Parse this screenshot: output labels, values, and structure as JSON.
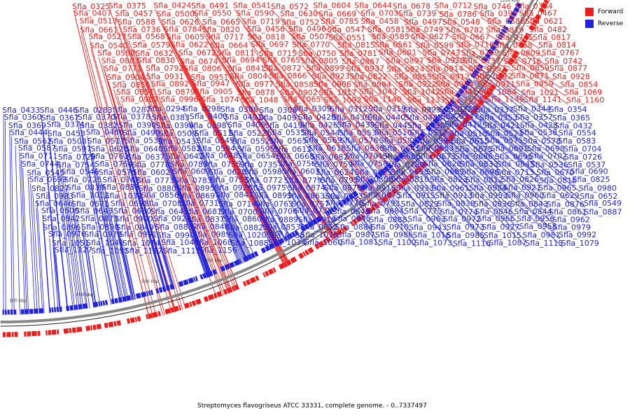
{
  "colors": {
    "forward": "#ef1c1c",
    "reverse": "#2222dd",
    "backbone": "#888888"
  },
  "legend": {
    "forward": "Forward",
    "reverse": "Reverse"
  },
  "caption": "Streptomyces flavogriseus ATCC 33331, complete genome. - 0..7337497",
  "scale_ticks": [
    "100 kbp",
    "400 kbp",
    "500 kbp",
    "600 kbp",
    "700 kbp",
    "800 kbp",
    "900 kbp",
    "1000 kbp",
    "1100 kbp",
    "1200 kbp",
    "1300 kbp"
  ],
  "forward_labels": [
    "Sfla_0325",
    "Sfla_0375",
    "Sfla_0424",
    "Sfla_0491",
    "Sfla_0541",
    "Sfla_0572",
    "Sfla_0604",
    "Sfla_0644",
    "Sfla_0678",
    "Sfla_0712",
    "Sfla_0746",
    "Sfla_0364",
    "Sfla_0407",
    "Sfla_0457",
    "Sfla_0500",
    "Sfla_0550",
    "Sfla_0590",
    "Sfla_0630",
    "Sfla_0669",
    "Sfla_0703",
    "Sfla_0739",
    "Sfla_0786",
    "Sfla_0395",
    "Sfla_0467",
    "Sfla_0513",
    "Sfla_0588",
    "Sfla_0626",
    "Sfla_0665",
    "Sfla_0719",
    "Sfla_0752",
    "Sfla_0785",
    "Sfla_0458",
    "Sfla_0497",
    "Sfla_0548",
    "Sfla_0586",
    "Sfla_0621",
    "Sfla_0661",
    "Sfla_0736",
    "Sfla_0784",
    "Sfla_0820",
    "Sfla_0456",
    "Sfla_0496",
    "Sfla_0547",
    "Sfla_0581",
    "Sfla_0749",
    "Sfla_0782",
    "Sfla_0819",
    "Sfla_0482",
    "Sfla_0527",
    "Sfla_0568",
    "Sfla_0605",
    "Sfla_0717",
    "Sfla_0818",
    "Sfla_0507",
    "Sfla_0551",
    "Sfla_0585",
    "Sfla_0627",
    "Sfla_0667",
    "Sfla_0745",
    "Sfla_0817",
    "Sfla_0540",
    "Sfla_0579",
    "Sfla_0622",
    "Sfla_0664",
    "Sfla_0697",
    "Sfla_0770",
    "Sfla_0815",
    "Sfla_0561",
    "Sfla_0599",
    "Sfla_0716",
    "Sfla_0768",
    "Sfla_0814",
    "Sfla_0580",
    "Sfla_0632",
    "Sfla_0672",
    "Sfla_0811",
    "Sfla_0715",
    "Sfla_0750",
    "Sfla_0781",
    "Sfla_0601",
    "Sfla_0743",
    "Sfla_0769",
    "Sfla_0809",
    "Sfla_0767",
    "Sfla_0803",
    "Sfla_0830",
    "Sfla_0674",
    "Sfla_0694",
    "Sfla_0765",
    "Sfla_0805",
    "Sfla_0867",
    "Sfla_0897",
    "Sfla_0920",
    "Sfla_0737",
    "Sfla_0716",
    "Sfla_0742",
    "Sfla_0771",
    "Sfla_0792",
    "Sfla_0806",
    "Sfla_0841",
    "Sfla_0872",
    "Sfla_0899",
    "Sfla_0937",
    "Sfla_0824",
    "Sfla_0914",
    "Sfla_0952",
    "Sfla_0859",
    "Sfla_0877",
    "Sfla_0904",
    "Sfla_0931",
    "Sfla_0951",
    "Sfla_0804",
    "Sfla_0866",
    "Sfla_0923",
    "Sfla_0822",
    "Sfla_0855",
    "Sfla_0912",
    "Sfla_0942",
    "Sfla_0871",
    "Sfla_0928",
    "Sfla_0856",
    "Sfla_0892",
    "Sfla_0947",
    "Sfla_0977",
    "Sfla_0858",
    "Sfla_0906",
    "Sfla_0894",
    "Sfla_0922",
    "Sfla_0954",
    "Sfla_0911",
    "Sfla_0959",
    "Sfla_0854",
    "Sfla_0851",
    "Sfla_0879",
    "Sfla_0905",
    "Sfla_0878",
    "Sfla_0902",
    "Sfla_1017",
    "Sfla_1043",
    "Sfla_1042",
    "Sfla_1041",
    "Sfla_1064",
    "Sfla_1021",
    "Sfla_1069",
    "Sfla_0982",
    "Sfla_0996",
    "Sfla_1074",
    "Sfla_1048",
    "Sfla_1065",
    "Sfla_1092",
    "Sfla_1140",
    "Sfla_1133",
    "Sfla_1126",
    "Sfla_1149",
    "Sfla_1141",
    "Sfla_1160"
  ],
  "reverse_labels": [
    "Sfla_0433",
    "Sfla_0446",
    "Sfla_0283",
    "Sfla_0287",
    "Sfla_0294",
    "Sfla_0298",
    "Sfla_0306",
    "Sfla_0308",
    "Sfla_0309",
    "Sfla_0312",
    "Sfla_0319",
    "Sfla_0323",
    "Sfla_0329",
    "Sfla_0337",
    "Sfla_0344",
    "Sfla_0354",
    "Sfla_0360",
    "Sfla_0367",
    "Sfla_0370",
    "Sfla_0378",
    "Sfla_0383",
    "Sfla_0400",
    "Sfla_0401",
    "Sfla_0409",
    "Sfla_0420",
    "Sfla_0430",
    "Sfla_0440",
    "Sfla_0488",
    "Sfla_0347",
    "Sfla_0353",
    "Sfla_0357",
    "Sfla_0365",
    "Sfla_0369",
    "Sfla_0374",
    "Sfla_0382",
    "Sfla_0390",
    "Sfla_0394",
    "Sfla_0398",
    "Sfla_0408",
    "Sfla_0419",
    "Sfla_0426",
    "Sfla_0439",
    "Sfla_0445",
    "Sfla_0455",
    "Sfla_0412",
    "Sfla_0421",
    "Sfla_0428",
    "Sfla_0432",
    "Sfla_0444",
    "Sfla_0453",
    "Sfla_0486",
    "Sfla_0490",
    "Sfla_0509",
    "Sfla_0511",
    "Sfla_0522",
    "Sfla_0535",
    "Sfla_0544",
    "Sfla_0553",
    "Sfla_0510",
    "Sfla_0512",
    "Sfla_0518",
    "Sfla_0523",
    "Sfla_0538",
    "Sfla_0554",
    "Sfla_0562",
    "Sfla_0508",
    "Sfla_0517",
    "Sfla_0530",
    "Sfla_0543",
    "Sfla_0549",
    "Sfla_0552",
    "Sfla_0565",
    "Sfla_0569",
    "Sfla_0576",
    "Sfla_0584",
    "Sfla_0596",
    "Sfla_0615",
    "Sfla_0575",
    "Sfla_0578",
    "Sfla_0583",
    "Sfla_0587",
    "Sfla_0597",
    "Sfla_0620",
    "Sfla_0640",
    "Sfla_0582",
    "Sfla_0594",
    "Sfla_0595",
    "Sfla_0612",
    "Sfla_0618",
    "Sfla_0636",
    "Sfla_0641",
    "Sfla_0653",
    "Sfla_0675",
    "Sfla_0691",
    "Sfla_0698",
    "Sfla_0704",
    "Sfla_0711",
    "Sfla_0729",
    "Sfla_0761",
    "Sfla_0637",
    "Sfla_0642",
    "Sfla_0648",
    "Sfla_0654",
    "Sfla_0668",
    "Sfla_0682",
    "Sfla_0701",
    "Sfla_0666",
    "Sfla_0673",
    "Sfla_0686",
    "Sfla_0695",
    "Sfla_0702",
    "Sfla_0726",
    "Sfla_0744",
    "Sfla_0754",
    "Sfla_0764",
    "Sfla_0778",
    "Sfla_0787",
    "Sfla_0755",
    "Sfla_0735",
    "Sfla_0756",
    "Sfla_0759",
    "Sfla_0758",
    "Sfla_0780",
    "Sfla_0828",
    "Sfla_0833",
    "Sfla_0845",
    "Sfla_0536",
    "Sfla_0537",
    "Sfla_0545",
    "Sfla_0546",
    "Sfla_0570",
    "Sfla_0602",
    "Sfla_0609",
    "Sfla_0628",
    "Sfla_0598",
    "Sfla_0603",
    "Sfla_0624",
    "Sfla_0625",
    "Sfla_0655",
    "Sfla_0685",
    "Sfla_0696",
    "Sfla_0713",
    "Sfla_0670",
    "Sfla_0690",
    "Sfla_0699",
    "Sfla_0725",
    "Sfla_0762",
    "Sfla_0773",
    "Sfla_0783",
    "Sfla_0753",
    "Sfla_0772",
    "Sfla_0779",
    "Sfla_0795",
    "Sfla_0808",
    "Sfla_0810",
    "Sfla_0823",
    "Sfla_0812",
    "Sfla_0826",
    "Sfla_0816",
    "Sfla_0825",
    "Sfla_0827",
    "Sfla_0839",
    "Sfla_0881",
    "Sfla_0880",
    "Sfla_0895",
    "Sfla_0926",
    "Sfla_0975",
    "Sfla_0874",
    "Sfla_0870",
    "Sfla_0916",
    "Sfla_0933",
    "Sfla_0961",
    "Sfla_0984",
    "Sfla_0921",
    "Sfla_0965",
    "Sfla_0980",
    "Sfla_0983",
    "Sfla_1012",
    "Sfla_1031",
    "Sfla_0856",
    "Sfla_0869",
    "Sfla_0847",
    "Sfla_0891",
    "Sfla_0863",
    "Sfla_0903",
    "Sfla_0875",
    "Sfla_0915",
    "Sfla_0913",
    "Sfla_0953",
    "Sfla_0960",
    "Sfla_0629",
    "Sfla_0652",
    "Sfla_0646",
    "Sfla_0671",
    "Sfla_0692",
    "Sfla_0708",
    "Sfla_0731",
    "Sfla_0714",
    "Sfla_0763",
    "Sfla_0757",
    "Sfla_0776",
    "Sfla_0793",
    "Sfla_0829",
    "Sfla_0838",
    "Sfla_0836",
    "Sfla_0843",
    "Sfla_0876",
    "Sfla_0549",
    "Sfla_0600",
    "Sfla_0643",
    "Sfla_0680",
    "Sfla_0645",
    "Sfla_0681",
    "Sfla_0700",
    "Sfla_0706",
    "Sfla_0738",
    "Sfla_0649",
    "Sfla_0684",
    "Sfla_0775",
    "Sfla_0774",
    "Sfla_0846",
    "Sfla_0844",
    "Sfla_0861",
    "Sfla_0887",
    "Sfla_0842",
    "Sfla_0873",
    "Sfla_0900",
    "Sfla_0924",
    "Sfla_0837",
    "Sfla_0860",
    "Sfla_0889",
    "Sfla_0918",
    "Sfla_0945",
    "Sfla_0888",
    "Sfla_0963",
    "Sfla_0972",
    "Sfla_0966",
    "Sfla_0956",
    "Sfla_0962",
    "Sfla_0885",
    "Sfla_0896",
    "Sfla_0898",
    "Sfla_0849",
    "Sfla_0883",
    "Sfla_0848",
    "Sfla_0882",
    "Sfla_0853",
    "Sfla_0852",
    "Sfla_0884",
    "Sfla_0910",
    "Sfla_0943",
    "Sfla_0973",
    "Sfla_0927",
    "Sfla_0958",
    "Sfla_0979",
    "Sfla_0944",
    "Sfla_0976",
    "Sfla_0978",
    "Sfla_0991",
    "Sfla_0990",
    "Sfla_0989",
    "Sfla_1020",
    "Sfla_0988",
    "Sfla_1019",
    "Sfla_0987",
    "Sfla_0986",
    "Sfla_1016",
    "Sfla_0985",
    "Sfla_1015",
    "Sfla_0981",
    "Sfla_0992",
    "Sfla_1028",
    "Sfla_1051",
    "Sfla_1046",
    "Sfla_1014",
    "Sfla_1044",
    "Sfla_1068",
    "Sfla_1088",
    "Sfla_1034",
    "Sfla_1060",
    "Sfla_1081",
    "Sfla_1100",
    "Sfla_1073",
    "Sfla_1116",
    "Sfla_1087",
    "Sfla_1115",
    "Sfla_1079",
    "Sfla_1101",
    "Sfla_1127",
    "Sfla_1091",
    "Sfla_1117",
    "Sfla_1111",
    "Sfla_1156"
  ]
}
